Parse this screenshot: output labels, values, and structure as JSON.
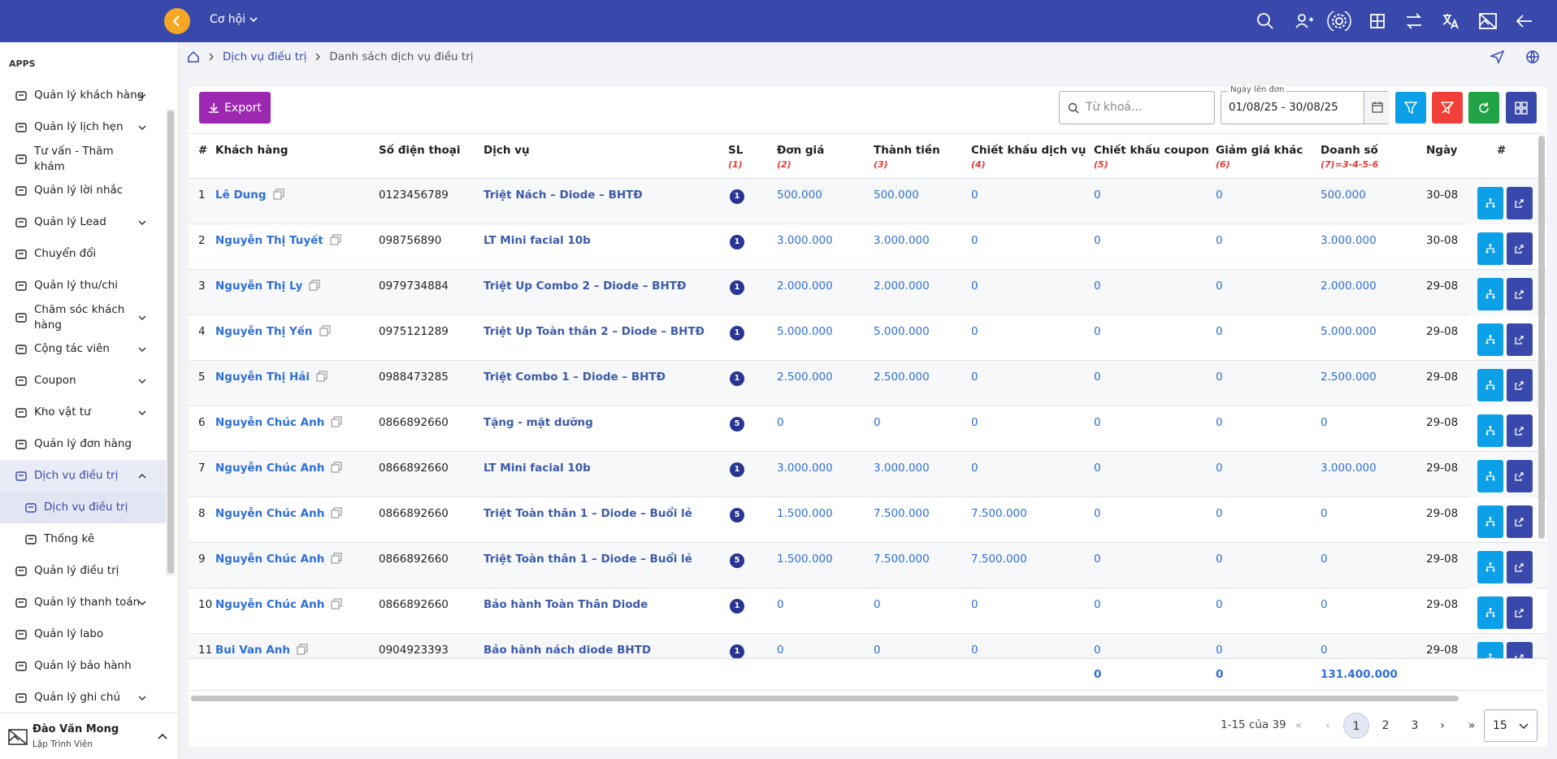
{
  "topbar": {
    "module": "Cơ hội"
  },
  "sidebar": {
    "section": "APPS",
    "items": [
      {
        "label": "Quản lý khách hàng",
        "expandable": true
      },
      {
        "label": "Quản lý lịch hẹn",
        "expandable": true
      },
      {
        "label": "Tư vấn - Thăm khám",
        "expandable": false
      },
      {
        "label": "Quản lý lời nhắc",
        "expandable": false
      },
      {
        "label": "Quản lý Lead",
        "expandable": true
      },
      {
        "label": "Chuyển đổi",
        "expandable": false
      },
      {
        "label": "Quản lý thu/chi",
        "expandable": false
      },
      {
        "label": "Chăm sóc khách hàng",
        "expandable": true
      },
      {
        "label": "Cộng tác viên",
        "expandable": true
      },
      {
        "label": "Coupon",
        "expandable": true
      },
      {
        "label": "Kho vật tư",
        "expandable": true
      },
      {
        "label": "Quản lý đơn hàng",
        "expandable": false
      },
      {
        "label": "Dịch vụ điều trị",
        "expandable": true,
        "expanded": true,
        "active": true,
        "children": [
          {
            "label": "Dịch vụ điều trị",
            "active": true
          },
          {
            "label": "Thống kê",
            "active": false
          }
        ]
      },
      {
        "label": "Quản lý điều trị",
        "expandable": false
      },
      {
        "label": "Quản lý thanh toán",
        "expandable": true
      },
      {
        "label": "Quản lý labo",
        "expandable": false
      },
      {
        "label": "Quản lý bảo hành",
        "expandable": false
      },
      {
        "label": "Quản lý ghi chú",
        "expandable": true
      }
    ],
    "user": {
      "name": "Đào Văn Mong",
      "role": "Lập Trình Viên"
    }
  },
  "breadcrumb": [
    "Dịch vụ điều trị",
    "Danh sách dịch vụ điều trị"
  ],
  "toolbar": {
    "export": "Export",
    "search_placeholder": "Từ khoá...",
    "date_label": "Ngày lên đơn",
    "date_range": "01/08/25 - 30/08/25"
  },
  "table": {
    "columns": [
      {
        "label": "#"
      },
      {
        "label": "Khách hàng"
      },
      {
        "label": "Số điện thoại"
      },
      {
        "label": "Dịch vụ"
      },
      {
        "label": "SL",
        "note": "(1)"
      },
      {
        "label": "Đơn giá",
        "note": "(2)"
      },
      {
        "label": "Thành tiền",
        "note": "(3)"
      },
      {
        "label": "Chiết khấu dịch vụ",
        "note": "(4)"
      },
      {
        "label": "Chiết khấu coupon",
        "note": "(5)"
      },
      {
        "label": "Giảm giá khác",
        "note": "(6)"
      },
      {
        "label": "Doanh số",
        "note": "(7)=3-4-5-6"
      },
      {
        "label": "Ngày"
      },
      {
        "label": "#"
      }
    ],
    "rows": [
      [
        "1",
        "Lê Dung",
        "0123456789",
        "Triệt Nách – Diode – BHTĐ",
        "1",
        "500.000",
        "500.000",
        "0",
        "0",
        "0",
        "500.000",
        "30-08"
      ],
      [
        "2",
        "Nguyễn Thị Tuyết",
        "098756890",
        "LT Mini facial 10b",
        "1",
        "3.000.000",
        "3.000.000",
        "0",
        "0",
        "0",
        "3.000.000",
        "30-08"
      ],
      [
        "3",
        "Nguyễn Thị Ly",
        "0979734884",
        "Triệt Up Combo 2 – Diode – BHTĐ",
        "1",
        "2.000.000",
        "2.000.000",
        "0",
        "0",
        "0",
        "2.000.000",
        "29-08"
      ],
      [
        "4",
        "Nguyễn Thị Yến",
        "0975121289",
        "Triệt Up Toàn thân 2 – Diode – BHTĐ",
        "1",
        "5.000.000",
        "5.000.000",
        "0",
        "0",
        "0",
        "5.000.000",
        "29-08"
      ],
      [
        "5",
        "Nguyễn Thị Hải",
        "0988473285",
        "Triệt Combo 1 – Diode – BHTĐ",
        "1",
        "2.500.000",
        "2.500.000",
        "0",
        "0",
        "0",
        "2.500.000",
        "29-08"
      ],
      [
        "6",
        "Nguyễn Chúc Anh",
        "0866892660",
        "Tặng - mặt dưỡng",
        "5",
        "0",
        "0",
        "0",
        "0",
        "0",
        "0",
        "29-08"
      ],
      [
        "7",
        "Nguyễn Chúc Anh",
        "0866892660",
        "LT Mini facial 10b",
        "1",
        "3.000.000",
        "3.000.000",
        "0",
        "0",
        "0",
        "3.000.000",
        "29-08"
      ],
      [
        "8",
        "Nguyễn Chúc Anh",
        "0866892660",
        "Triệt Toàn thân 1 – Diode – Buổi lẻ",
        "5",
        "1.500.000",
        "7.500.000",
        "7.500.000",
        "0",
        "0",
        "0",
        "29-08"
      ],
      [
        "9",
        "Nguyễn Chúc Anh",
        "0866892660",
        "Triệt Toàn thân 1 – Diode – Buổi lẻ",
        "5",
        "1.500.000",
        "7.500.000",
        "7.500.000",
        "0",
        "0",
        "0",
        "29-08"
      ],
      [
        "10",
        "Nguyễn Chúc Anh",
        "0866892660",
        "Bảo hành Toàn Thân Diode",
        "1",
        "0",
        "0",
        "0",
        "0",
        "0",
        "0",
        "29-08"
      ],
      [
        "11",
        "Bui Van Anh",
        "0904923393",
        "Bảo hành nách diode BHTD",
        "1",
        "0",
        "0",
        "0",
        "0",
        "0",
        "0",
        "29-08"
      ]
    ],
    "totals": {
      "coupon_discount": "0",
      "other_discount": "0",
      "revenue": "131.400.000"
    }
  },
  "pagination": {
    "summary": "1-15 của 39",
    "pages": [
      "1",
      "2",
      "3"
    ],
    "current": "1",
    "page_size": "15"
  }
}
